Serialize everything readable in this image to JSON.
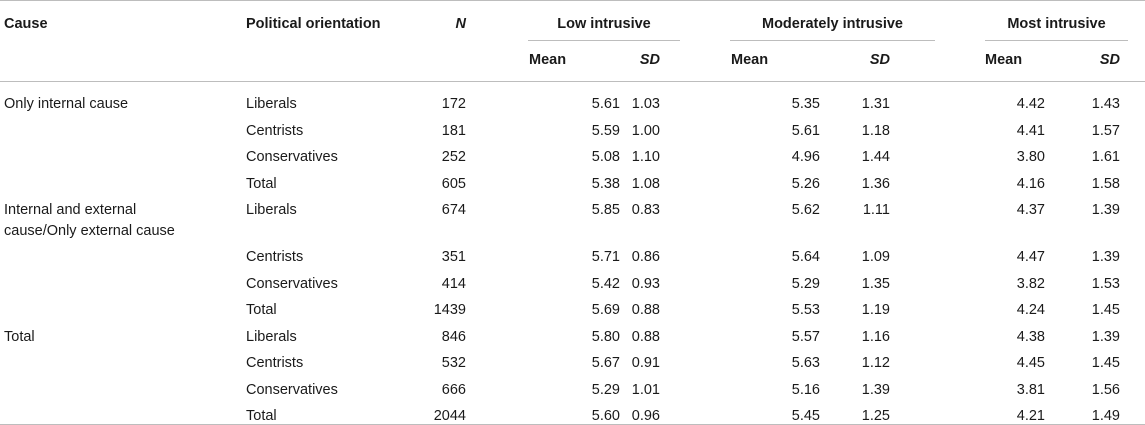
{
  "headers": {
    "cause": "Cause",
    "orientation": "Political orientation",
    "n": "N",
    "groups": [
      "Low intrusive",
      "Moderately intrusive",
      "Most intrusive"
    ],
    "mean": "Mean",
    "sd": "SD"
  },
  "rows": [
    {
      "cause": "Only internal cause",
      "orientation": "Liberals",
      "n": "172",
      "v": [
        "5.61",
        "1.03",
        "5.35",
        "1.31",
        "4.42",
        "1.43"
      ]
    },
    {
      "cause": "",
      "orientation": "Centrists",
      "n": "181",
      "v": [
        "5.59",
        "1.00",
        "5.61",
        "1.18",
        "4.41",
        "1.57"
      ]
    },
    {
      "cause": "",
      "orientation": "Conservatives",
      "n": "252",
      "v": [
        "5.08",
        "1.10",
        "4.96",
        "1.44",
        "3.80",
        "1.61"
      ]
    },
    {
      "cause": "",
      "orientation": "Total",
      "n": "605",
      "v": [
        "5.38",
        "1.08",
        "5.26",
        "1.36",
        "4.16",
        "1.58"
      ]
    },
    {
      "cause": "Internal and external cause/Only external cause",
      "orientation": "Liberals",
      "n": "674",
      "v": [
        "5.85",
        "0.83",
        "5.62",
        "1.11",
        "4.37",
        "1.39"
      ]
    },
    {
      "cause": "",
      "orientation": "Centrists",
      "n": "351",
      "v": [
        "5.71",
        "0.86",
        "5.64",
        "1.09",
        "4.47",
        "1.39"
      ]
    },
    {
      "cause": "",
      "orientation": "Conservatives",
      "n": "414",
      "v": [
        "5.42",
        "0.93",
        "5.29",
        "1.35",
        "3.82",
        "1.53"
      ]
    },
    {
      "cause": "",
      "orientation": "Total",
      "n": "1439",
      "v": [
        "5.69",
        "0.88",
        "5.53",
        "1.19",
        "4.24",
        "1.45"
      ]
    },
    {
      "cause": "Total",
      "orientation": "Liberals",
      "n": "846",
      "v": [
        "5.80",
        "0.88",
        "5.57",
        "1.16",
        "4.38",
        "1.39"
      ]
    },
    {
      "cause": "",
      "orientation": "Centrists",
      "n": "532",
      "v": [
        "5.67",
        "0.91",
        "5.63",
        "1.12",
        "4.45",
        "1.45"
      ]
    },
    {
      "cause": "",
      "orientation": "Conservatives",
      "n": "666",
      "v": [
        "5.29",
        "1.01",
        "5.16",
        "1.39",
        "3.81",
        "1.56"
      ]
    },
    {
      "cause": "",
      "orientation": "Total",
      "n": "2044",
      "v": [
        "5.60",
        "0.96",
        "5.45",
        "1.25",
        "4.21",
        "1.49"
      ]
    }
  ]
}
